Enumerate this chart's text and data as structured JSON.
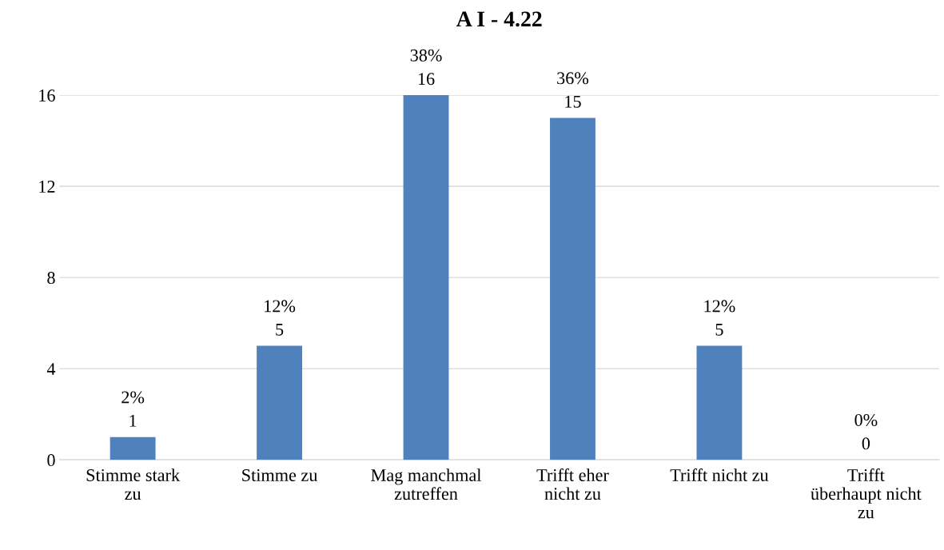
{
  "chart_data": {
    "type": "bar",
    "title": "A I - 4.22",
    "categories": [
      "Stimme stark\nzu",
      "Stimme zu",
      "Mag manchmal\nzutreffen",
      "Trifft eher\nnicht zu",
      "Trifft nicht zu",
      "Trifft\nüberhaupt nicht\nzu"
    ],
    "values": [
      1,
      5,
      16,
      15,
      5,
      0
    ],
    "value_labels": [
      "2%\n1",
      "12%\n5",
      "38%\n16",
      "36%\n15",
      "12%\n5",
      "0%\n0"
    ],
    "color": "#4f81bd",
    "ylim": [
      0,
      16
    ],
    "yticks": [
      0,
      4,
      8,
      12,
      16
    ],
    "grid": "y",
    "legend": false
  }
}
